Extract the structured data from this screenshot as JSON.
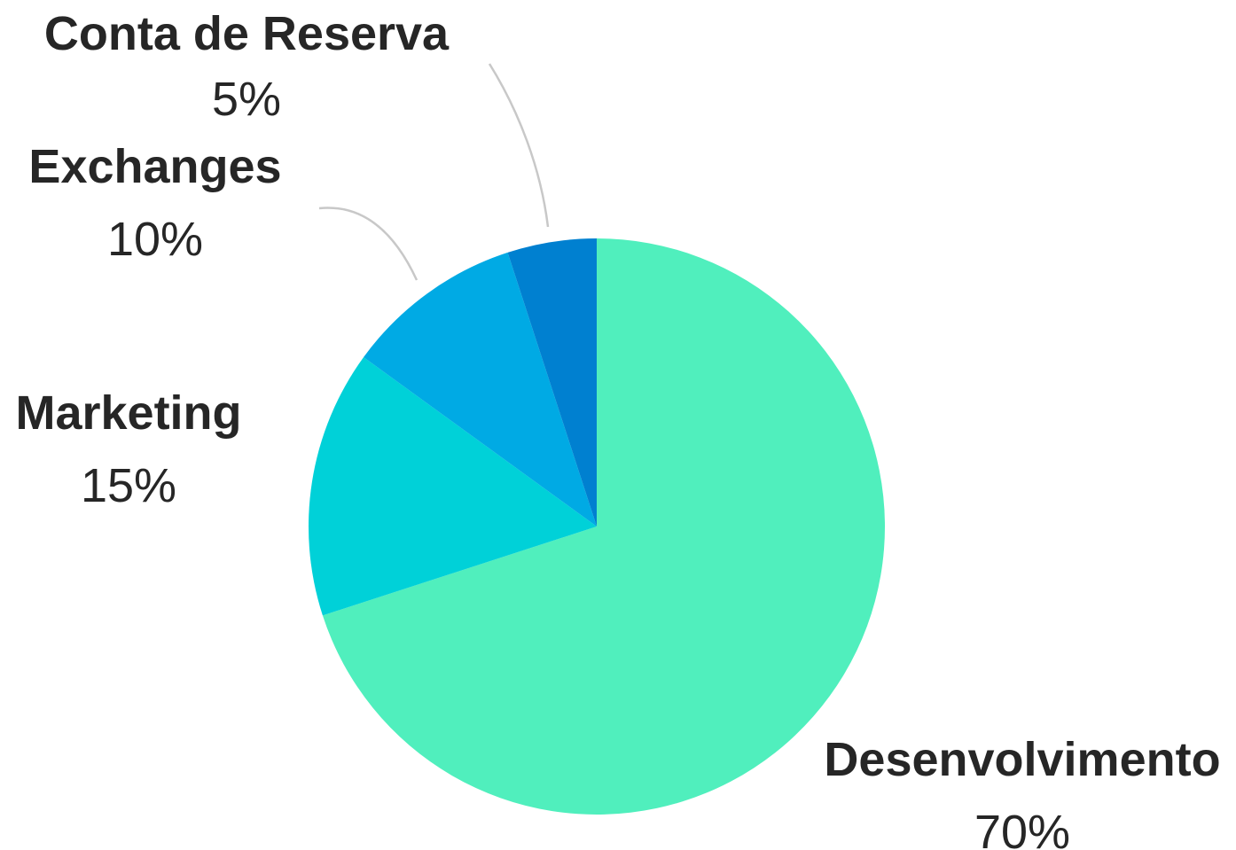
{
  "chart_data": {
    "type": "pie",
    "title": "",
    "legend": "none",
    "start_angle_deg": 0,
    "direction": "clockwise",
    "slices": [
      {
        "label": "Desenvolvimento",
        "value": 70,
        "value_label": "70%",
        "color": "#50efbd"
      },
      {
        "label": "Marketing",
        "value": 15,
        "value_label": "15%",
        "color": "#00d1d8"
      },
      {
        "label": "Exchanges",
        "value": 10,
        "value_label": "10%",
        "color": "#00aae4"
      },
      {
        "label": "Conta de Reserva",
        "value": 5,
        "value_label": "5%",
        "color": "#0080d0"
      }
    ]
  }
}
